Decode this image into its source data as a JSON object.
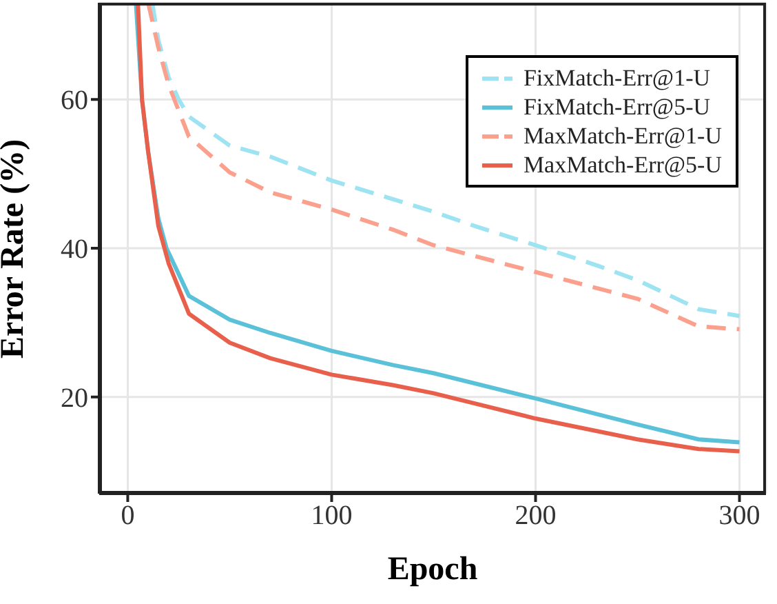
{
  "chart_data": {
    "type": "line",
    "xlabel": "Epoch",
    "ylabel": "Error Rate (%)",
    "xlim": [
      -14,
      313
    ],
    "ylim": [
      7,
      73
    ],
    "xticks": [
      0,
      100,
      200,
      300
    ],
    "yticks": [
      20,
      40,
      60
    ],
    "grid": true,
    "legend": "top right",
    "series": [
      {
        "name": "FixMatch-Err@1-U",
        "color": "#9de3f2",
        "line_style": "dashed",
        "x": [
          12,
          15,
          20,
          25,
          30,
          50,
          70,
          100,
          130,
          150,
          170,
          200,
          230,
          250,
          280,
          300
        ],
        "values": [
          73,
          68,
          63,
          60,
          57.7,
          53.8,
          52.3,
          49.1,
          46.6,
          44.9,
          43,
          40.4,
          37.7,
          35.7,
          31.8,
          30.9
        ]
      },
      {
        "name": "FixMatch-Err@5-U",
        "color": "#5bc1d9",
        "line_style": "solid",
        "x": [
          4,
          7,
          10,
          15,
          19,
          30,
          50,
          70,
          100,
          130,
          150,
          200,
          250,
          280,
          300
        ],
        "values": [
          73,
          60,
          53,
          44,
          40,
          33.6,
          30.4,
          28.6,
          26.2,
          24.3,
          23.2,
          19.8,
          16.3,
          14.3,
          13.9
        ]
      },
      {
        "name": "MaxMatch-Err@1-U",
        "color": "#fca08e",
        "line_style": "dashed",
        "x": [
          10,
          15,
          20,
          30,
          50,
          70,
          100,
          130,
          150,
          200,
          250,
          280,
          300
        ],
        "values": [
          73,
          67,
          62,
          55,
          50.2,
          47.5,
          45.2,
          42.5,
          40.4,
          36.8,
          33.2,
          29.5,
          29.1
        ]
      },
      {
        "name": "MaxMatch-Err@5-U",
        "color": "#e8604c",
        "line_style": "solid",
        "x": [
          5,
          7,
          10,
          15,
          20,
          30,
          50,
          70,
          100,
          130,
          150,
          200,
          250,
          280,
          300
        ],
        "values": [
          73,
          60,
          53,
          43,
          38,
          31.2,
          27.3,
          25.2,
          23,
          21.6,
          20.5,
          17.1,
          14.3,
          13,
          12.7
        ]
      }
    ]
  }
}
